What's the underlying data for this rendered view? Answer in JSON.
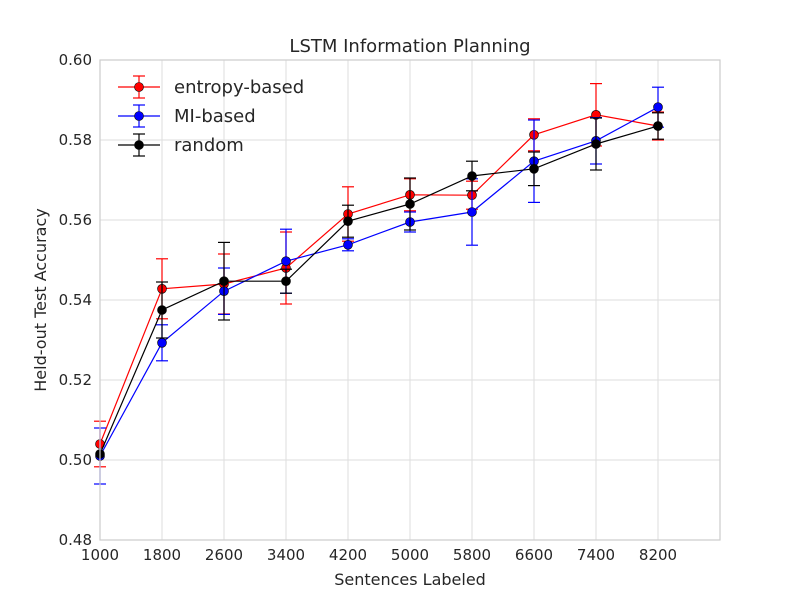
{
  "chart_data": {
    "type": "line",
    "title": "LSTM Information Planning",
    "xlabel": "Sentences Labeled",
    "ylabel": "Held-out Test Accuracy",
    "xlim": [
      1000,
      9000
    ],
    "ylim": [
      0.48,
      0.6
    ],
    "xticks": [
      1000,
      1800,
      2600,
      3400,
      4200,
      5000,
      5800,
      6600,
      7400,
      8200
    ],
    "xtick_labels": [
      "1000",
      "1800",
      "2600",
      "3400",
      "4200",
      "5000",
      "5800",
      "6600",
      "7400",
      "8200"
    ],
    "yticks": [
      0.48,
      0.5,
      0.52,
      0.54,
      0.56,
      0.58,
      0.6
    ],
    "ytick_labels": [
      "0.48",
      "0.50",
      "0.52",
      "0.54",
      "0.56",
      "0.58",
      "0.60"
    ],
    "grid": true,
    "legend_position": "upper-left",
    "x": [
      1000,
      1800,
      2600,
      3400,
      4200,
      5000,
      5800,
      6600,
      7400,
      8200
    ],
    "series": [
      {
        "name": "entropy-based",
        "color": "#ff0000",
        "values": [
          0.504,
          0.5428,
          0.544,
          0.548,
          0.5615,
          0.5663,
          0.5662,
          0.5813,
          0.5863,
          0.5835
        ],
        "errors": [
          0.0057,
          0.0075,
          0.0075,
          0.009,
          0.0068,
          0.004,
          0.0035,
          0.004,
          0.0078,
          0.0035
        ]
      },
      {
        "name": "MI-based",
        "color": "#0000ff",
        "values": [
          0.501,
          0.5293,
          0.5422,
          0.5497,
          0.5538,
          0.5595,
          0.562,
          0.5747,
          0.5798,
          0.5882
        ],
        "errors": [
          0.007,
          0.0045,
          0.0058,
          0.008,
          0.0015,
          0.0025,
          0.0083,
          0.0103,
          0.0058,
          0.005
        ]
      },
      {
        "name": "random",
        "color": "#000000",
        "values": [
          0.5015,
          0.5375,
          0.5447,
          0.5447,
          0.5597,
          0.564,
          0.571,
          0.5728,
          0.579,
          0.5835
        ],
        "errors": [
          0.0,
          0.007,
          0.0097,
          0.003,
          0.004,
          0.0065,
          0.0037,
          0.0042,
          0.0065,
          0.0033
        ]
      }
    ]
  }
}
